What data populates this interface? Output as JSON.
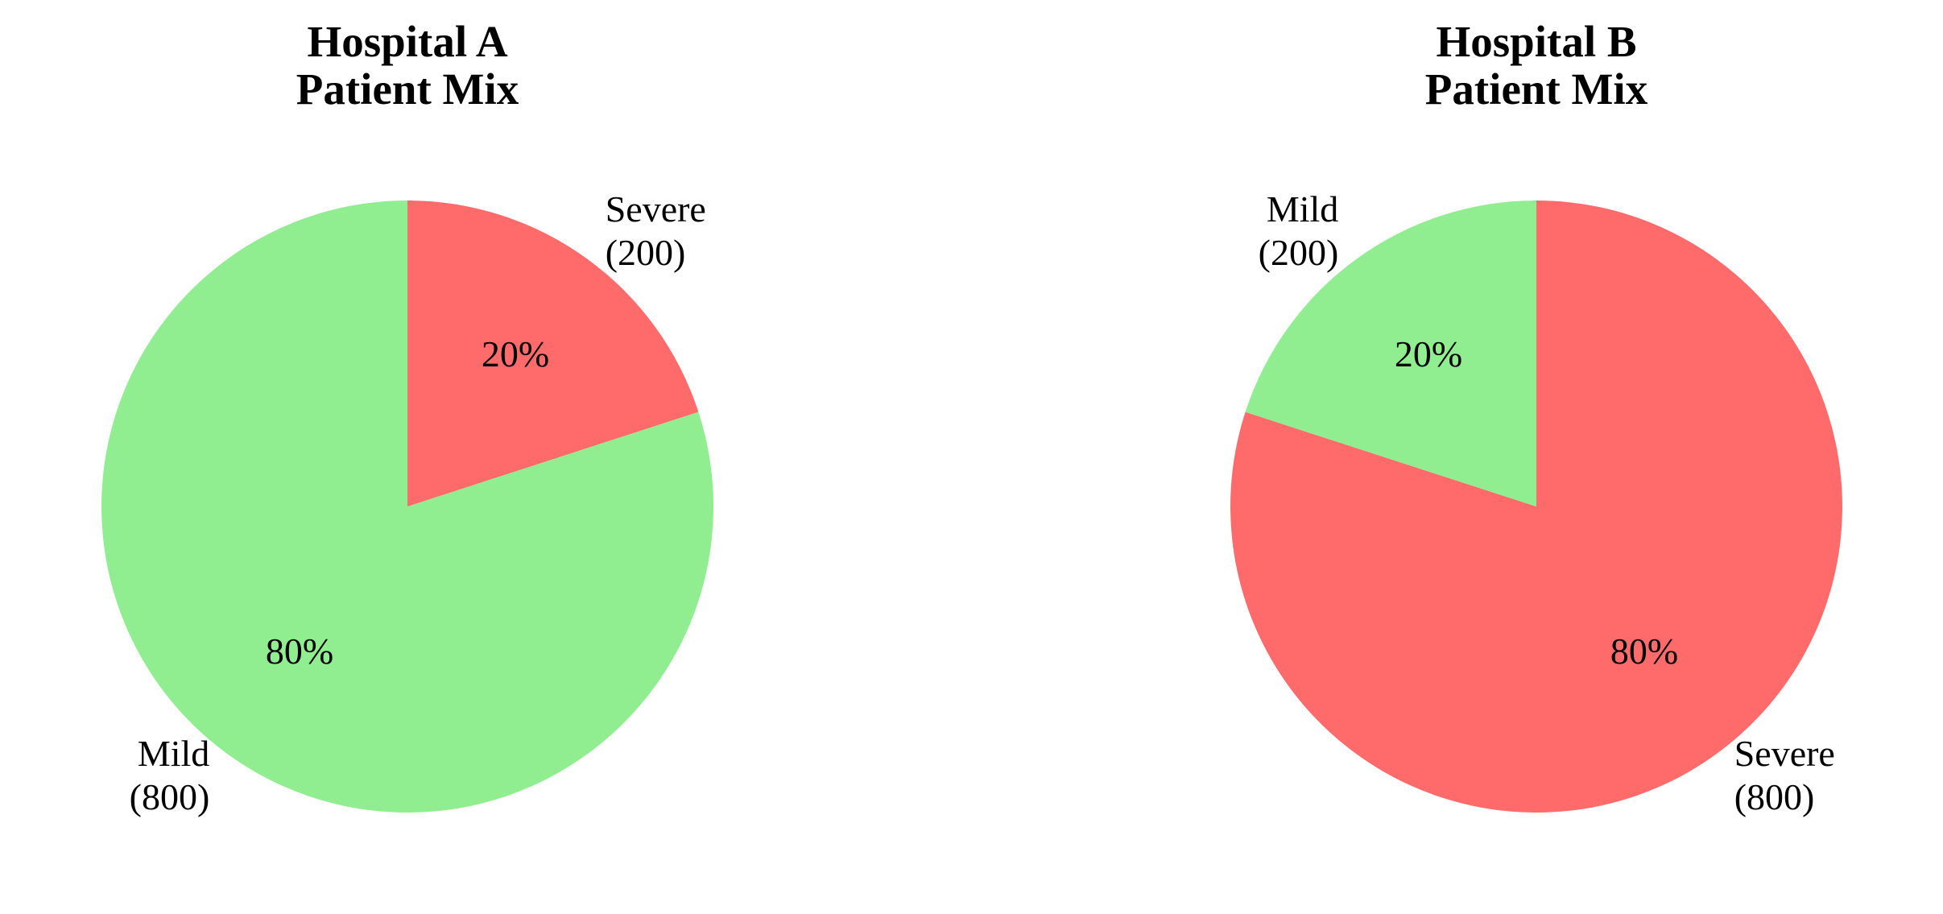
{
  "chart_data": [
    {
      "type": "pie",
      "title": "Hospital A\nPatient Mix",
      "categories": [
        "Severe",
        "Mild"
      ],
      "values": [
        200,
        800
      ],
      "value_labels": [
        "(200)",
        "(800)"
      ],
      "percent_labels": [
        "20%",
        "80%"
      ],
      "colors": [
        "#ff6b6b",
        "#90ee90"
      ],
      "startangle": 90,
      "counterclock": false
    },
    {
      "type": "pie",
      "title": "Hospital B\nPatient Mix",
      "categories": [
        "Severe",
        "Mild"
      ],
      "values": [
        800,
        200
      ],
      "value_labels": [
        "(800)",
        "(200)"
      ],
      "percent_labels": [
        "80%",
        "20%"
      ],
      "colors": [
        "#ff6b6b",
        "#90ee90"
      ],
      "startangle": 90,
      "counterclock": false
    }
  ]
}
